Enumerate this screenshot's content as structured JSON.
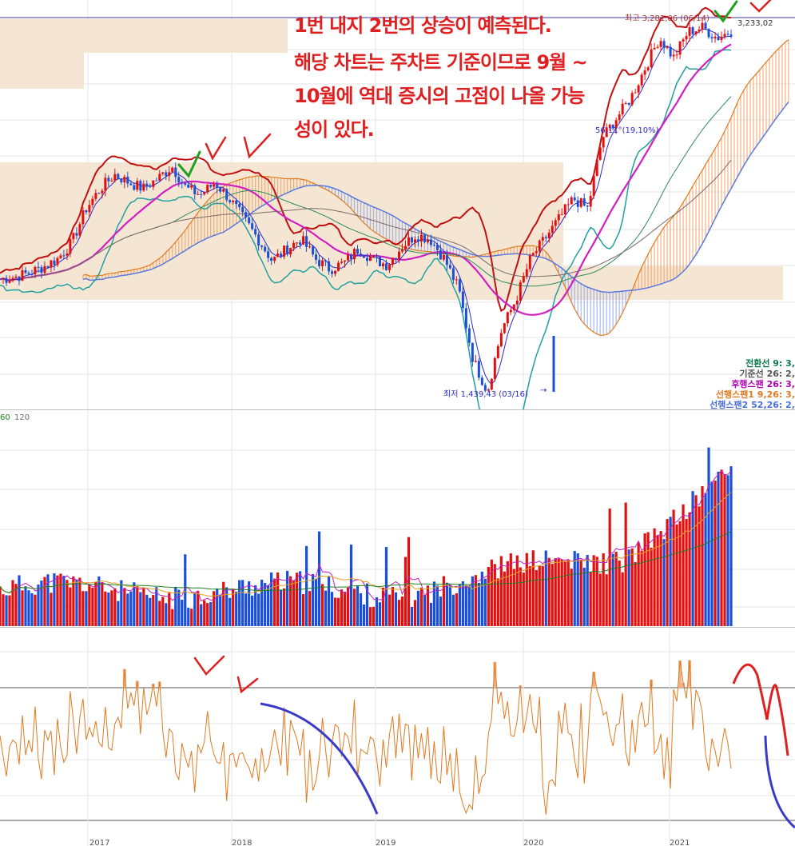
{
  "annotation": {
    "lines": [
      "1번 내지 2번의 상승이 예측된다.",
      "해당 차트는 주차트 기준이므로 9월 ~",
      "10월에 역대 증시의 고점이 나올 가능",
      "성이 있다."
    ]
  },
  "price_labels": {
    "high": "최고 3,281,06 (06/14)",
    "last": "3,233,02",
    "low": "최저 1,439,43 (03/16)",
    "angle": "56,11°(19,10%)"
  },
  "legend": [
    {
      "label": "전환선 9: 3,",
      "color": "#0a7a4a"
    },
    {
      "label": "기준선 26: 2,",
      "color": "#555555"
    },
    {
      "label": "후행스팬 26: 3,",
      "color": "#b000b0"
    },
    {
      "label": "선행스팬1 9,26: 3,",
      "color": "#e07a20"
    },
    {
      "label": "선행스팬2 52,26: 2,",
      "color": "#4a6fd8"
    }
  ],
  "volume_axis": {
    "labels": [
      "60",
      "120"
    ]
  },
  "year_labels": [
    "2017",
    "2018",
    "2019",
    "2020",
    "2021"
  ],
  "colors": {
    "up": "#e01010",
    "down": "#1a4fd8",
    "ma_magenta": "#d020c0",
    "bollinger": "#c01010",
    "bollinger_low": "#20a0a0",
    "osc": "#e07a20"
  },
  "chart_data": [
    {
      "type": "candlestick",
      "title": "",
      "x_range": [
        "2016",
        "2021-06"
      ],
      "series": [
        {
          "name": "close_approx",
          "values": [
            2000,
            2010,
            2030,
            2060,
            2100,
            2180,
            2350,
            2450,
            2520,
            2480,
            2450,
            2500,
            2560,
            2450,
            2420,
            2480,
            2400,
            2300,
            2200,
            2090,
            2150,
            2200,
            2100,
            2050,
            2080,
            2150,
            2100,
            2070,
            2160,
            2220,
            2200,
            2100,
            1950,
            1600,
            1440,
            1750,
            1900,
            2100,
            2200,
            2300,
            2400,
            2350,
            2700,
            2800,
            2900,
            3050,
            3200,
            3100,
            3230,
            3250,
            3200,
            3233
          ]
        },
        {
          "name": "ichimoku_cloud_top",
          "values": []
        }
      ]
    },
    {
      "type": "bar",
      "title": "",
      "series": [
        {
          "name": "volume",
          "values": []
        }
      ]
    },
    {
      "type": "line",
      "title": "",
      "series": [
        {
          "name": "oscillator",
          "values": []
        }
      ]
    }
  ]
}
